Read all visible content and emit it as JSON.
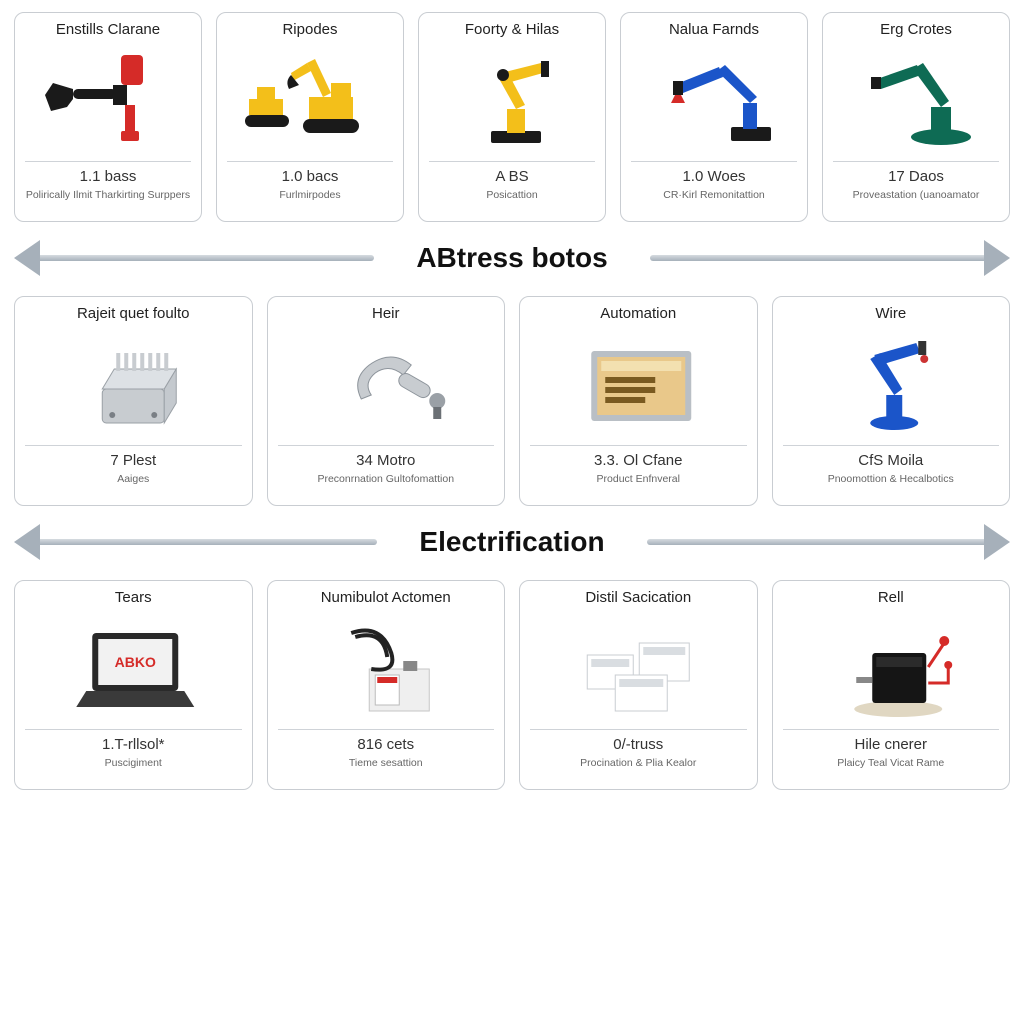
{
  "palette": {
    "card_border": "#c9cdd2",
    "divider_shaft": "#a6b0ba",
    "text_primary": "#111111",
    "text_secondary": "#666666",
    "background": "#ffffff"
  },
  "dividers": [
    {
      "label": "ABtress botos"
    },
    {
      "label": "Electrification"
    }
  ],
  "rows": [
    {
      "layout": "row-5",
      "cards": [
        {
          "title": "Enstills Clarane",
          "metric": "1.1 bass",
          "sub": "Polirically Ilmit Tharkirting Surppers",
          "icon": "tool-red"
        },
        {
          "title": "Ripodes",
          "metric": "1.0 bacs",
          "sub": "Furlmirpodes",
          "icon": "excavator"
        },
        {
          "title": "Foorty & Hilas",
          "metric": "A BS",
          "sub": "Posicattion",
          "icon": "robot-yellow"
        },
        {
          "title": "Nalua Farnds",
          "metric": "1.0 Woes",
          "sub": "CR·Kirl Remonitattion",
          "icon": "robot-blue-stand"
        },
        {
          "title": "Erg Crotes",
          "metric": "17 Daos",
          "sub": "Proveastation (uanoamator",
          "icon": "robot-green"
        }
      ]
    },
    {
      "layout": "row-4",
      "cards": [
        {
          "title": "Rajeit quet foulto",
          "metric": "7 Plest",
          "sub": "Aaiges",
          "icon": "heatsink"
        },
        {
          "title": "Heir",
          "metric": "34 Motro",
          "sub": "Preconrnation Gultofomattion",
          "icon": "sensor"
        },
        {
          "title": "Automation",
          "metric": "3.3. Ol Cfane",
          "sub": "Product Enfnveral",
          "icon": "panel"
        },
        {
          "title": "Wire",
          "metric": "CfS Moila",
          "sub": "Pnoomottion & Hecalbotics",
          "icon": "robot-blue-arm"
        }
      ]
    },
    {
      "layout": "row-4",
      "cards": [
        {
          "title": "Tears",
          "metric": "1.T-rllsol*",
          "sub": "Puscigiment",
          "icon": "laptop"
        },
        {
          "title": "Numibulot Actomen",
          "metric": "816 cets",
          "sub": "Tieme sesattion",
          "icon": "cable-box"
        },
        {
          "title": "Distil Sacication",
          "metric": "0/-truss",
          "sub": "Procination & Plia Kealor",
          "icon": "boxes"
        },
        {
          "title": "Rell",
          "metric": "Hile cnerer",
          "sub": "Plaicy Teal Vicat Rame",
          "icon": "blackbox"
        }
      ]
    }
  ],
  "icons": {
    "colors": {
      "yellow": "#f3bf1a",
      "red": "#d52b28",
      "black": "#1a1a1a",
      "blue": "#1b55c9",
      "green": "#0e6b54",
      "grey": "#b8bfc6",
      "steel": "#c8ccd0",
      "screen": "#e9c88a",
      "laptop": "#2a2a2a",
      "box": "#efefef"
    }
  }
}
